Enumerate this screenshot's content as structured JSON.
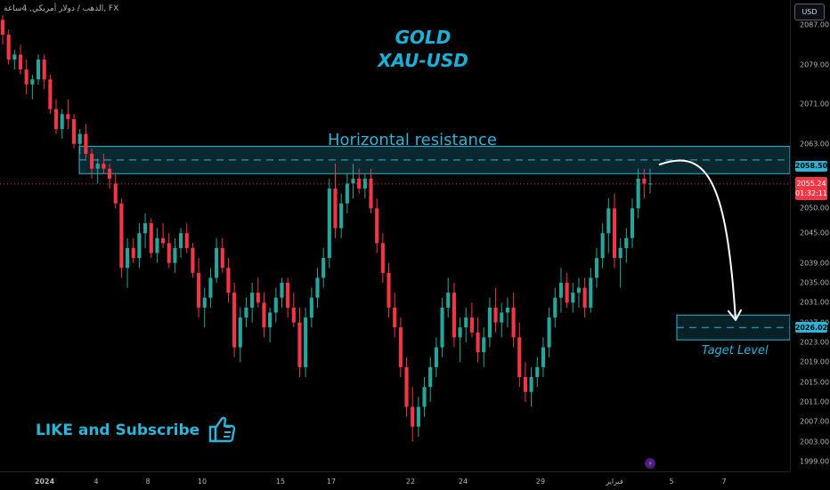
{
  "header": {
    "symbol_title": "الذهب / دولار أمريكي, 4ساعة, FX",
    "currency_button": "USD"
  },
  "annotations": {
    "title_line1": "GOLD",
    "title_line2": "XAU-USD",
    "resistance_label": "Horizontal resistance",
    "target_label": "Taget Level",
    "like_subscribe": "LIKE and Subscribe"
  },
  "price_axis": {
    "labels": [
      "2087.00",
      "2079.00",
      "2071.00",
      "2063.00",
      "2050.00",
      "2045.00",
      "2039.00",
      "2035.00",
      "2031.00",
      "2027.00",
      "2023.00",
      "2019.00",
      "2015.00",
      "2011.00",
      "2007.00",
      "2003.00",
      "1999.00"
    ],
    "resistance_price": "2058.50",
    "current_price": "2055.24",
    "countdown": "01:32:11",
    "target_price": "2026.02"
  },
  "time_axis": {
    "labels": [
      "2024",
      "4",
      "8",
      "10",
      "15",
      "17",
      "22",
      "24",
      "29",
      "فبراير",
      "5",
      "7"
    ]
  },
  "colors": {
    "up": "#26a69a",
    "down": "#f23645",
    "zone": "#29b6d8",
    "accent": "#1ab0d8"
  },
  "icons": {
    "thumbs_up": "thumbs-up-icon",
    "event": "lightning-icon"
  },
  "chart_data": {
    "type": "candlestick",
    "symbol": "XAU-USD",
    "timeframe": "4h",
    "ylim": [
      1997,
      2092
    ],
    "resistance_zone": [
      2057.0,
      2062.5
    ],
    "target_zone": [
      2023.5,
      2028.5
    ],
    "candles": [
      [
        2088,
        2089,
        2083,
        2085
      ],
      [
        2085,
        2086,
        2079,
        2080
      ],
      [
        2080,
        2082,
        2078,
        2081
      ],
      [
        2081,
        2083,
        2077,
        2078
      ],
      [
        2078,
        2080,
        2073,
        2075
      ],
      [
        2075,
        2077,
        2072,
        2076
      ],
      [
        2076,
        2081,
        2075,
        2080
      ],
      [
        2080,
        2081,
        2074,
        2076
      ],
      [
        2076,
        2077,
        2069,
        2070
      ],
      [
        2070,
        2072,
        2065,
        2066
      ],
      [
        2066,
        2070,
        2064,
        2069
      ],
      [
        2069,
        2072,
        2066,
        2068
      ],
      [
        2068,
        2069,
        2062,
        2063
      ],
      [
        2063,
        2066,
        2061,
        2065
      ],
      [
        2065,
        2067,
        2060,
        2061
      ],
      [
        2061,
        2062,
        2056,
        2058
      ],
      [
        2058,
        2060,
        2055,
        2059
      ],
      [
        2059,
        2061,
        2057,
        2058
      ],
      [
        2058,
        2059,
        2054,
        2056
      ],
      [
        2055,
        2057,
        2050,
        2051
      ],
      [
        2051,
        2052,
        2036,
        2038
      ],
      [
        2038,
        2044,
        2034,
        2042
      ],
      [
        2042,
        2044,
        2039,
        2040
      ],
      [
        2040,
        2047,
        2038,
        2045
      ],
      [
        2045,
        2049,
        2042,
        2047
      ],
      [
        2047,
        2048,
        2040,
        2041
      ],
      [
        2041,
        2046,
        2039,
        2044
      ],
      [
        2044,
        2047,
        2042,
        2043
      ],
      [
        2043,
        2045,
        2038,
        2039
      ],
      [
        2039,
        2044,
        2037,
        2042
      ],
      [
        2042,
        2046,
        2040,
        2045
      ],
      [
        2045,
        2047,
        2041,
        2042
      ],
      [
        2042,
        2043,
        2036,
        2037
      ],
      [
        2037,
        2040,
        2028,
        2030
      ],
      [
        2030,
        2034,
        2026,
        2032
      ],
      [
        2032,
        2038,
        2030,
        2036
      ],
      [
        2036,
        2044,
        2035,
        2042
      ],
      [
        2042,
        2044,
        2037,
        2038
      ],
      [
        2038,
        2040,
        2031,
        2033
      ],
      [
        2033,
        2035,
        2020,
        2022
      ],
      [
        2022,
        2030,
        2019,
        2028
      ],
      [
        2028,
        2032,
        2026,
        2030
      ],
      [
        2030,
        2035,
        2027,
        2033
      ],
      [
        2033,
        2036,
        2030,
        2031
      ],
      [
        2031,
        2033,
        2024,
        2026
      ],
      [
        2026,
        2030,
        2023,
        2029
      ],
      [
        2029,
        2034,
        2027,
        2032
      ],
      [
        2032,
        2036,
        2030,
        2035
      ],
      [
        2035,
        2036,
        2028,
        2030
      ],
      [
        2030,
        2033,
        2026,
        2027
      ],
      [
        2027,
        2030,
        2016,
        2018
      ],
      [
        2018,
        2030,
        2016,
        2028
      ],
      [
        2028,
        2034,
        2026,
        2032
      ],
      [
        2032,
        2038,
        2030,
        2036
      ],
      [
        2036,
        2042,
        2034,
        2040
      ],
      [
        2040,
        2056,
        2038,
        2054
      ],
      [
        2054,
        2059,
        2044,
        2046
      ],
      [
        2046,
        2053,
        2044,
        2051
      ],
      [
        2051,
        2057,
        2049,
        2055
      ],
      [
        2055,
        2059,
        2052,
        2056
      ],
      [
        2056,
        2058,
        2053,
        2054
      ],
      [
        2054,
        2057,
        2052,
        2056
      ],
      [
        2056,
        2058,
        2049,
        2050
      ],
      [
        2050,
        2052,
        2041,
        2043
      ],
      [
        2043,
        2045,
        2035,
        2037
      ],
      [
        2037,
        2039,
        2028,
        2030
      ],
      [
        2030,
        2033,
        2024,
        2026
      ],
      [
        2026,
        2028,
        2016,
        2018
      ],
      [
        2018,
        2020,
        2008,
        2010
      ],
      [
        2010,
        2014,
        2003,
        2006
      ],
      [
        2006,
        2012,
        2004,
        2010
      ],
      [
        2010,
        2016,
        2008,
        2014
      ],
      [
        2014,
        2020,
        2011,
        2018
      ],
      [
        2018,
        2024,
        2016,
        2022
      ],
      [
        2022,
        2032,
        2020,
        2030
      ],
      [
        2030,
        2036,
        2028,
        2033
      ],
      [
        2033,
        2035,
        2022,
        2024
      ],
      [
        2024,
        2028,
        2019,
        2026
      ],
      [
        2026,
        2030,
        2023,
        2028
      ],
      [
        2028,
        2031,
        2024,
        2025
      ],
      [
        2025,
        2028,
        2019,
        2021
      ],
      [
        2021,
        2026,
        2018,
        2024
      ],
      [
        2024,
        2032,
        2022,
        2030
      ],
      [
        2030,
        2034,
        2025,
        2027
      ],
      [
        2027,
        2031,
        2024,
        2029
      ],
      [
        2029,
        2032,
        2026,
        2030
      ],
      [
        2030,
        2033,
        2022,
        2024
      ],
      [
        2024,
        2027,
        2014,
        2016
      ],
      [
        2016,
        2019,
        2011,
        2013
      ],
      [
        2013,
        2018,
        2010,
        2016
      ],
      [
        2016,
        2020,
        2014,
        2018
      ],
      [
        2018,
        2024,
        2016,
        2022
      ],
      [
        2022,
        2030,
        2020,
        2028
      ],
      [
        2028,
        2034,
        2026,
        2032
      ],
      [
        2032,
        2038,
        2029,
        2035
      ],
      [
        2035,
        2037,
        2030,
        2031
      ],
      [
        2031,
        2035,
        2029,
        2033
      ],
      [
        2033,
        2036,
        2030,
        2034
      ],
      [
        2034,
        2036,
        2028,
        2030
      ],
      [
        2030,
        2038,
        2029,
        2036
      ],
      [
        2036,
        2042,
        2034,
        2040
      ],
      [
        2040,
        2047,
        2038,
        2045
      ],
      [
        2045,
        2052,
        2041,
        2050
      ],
      [
        2050,
        2053,
        2038,
        2040
      ],
      [
        2040,
        2044,
        2034,
        2042
      ],
      [
        2042,
        2046,
        2039,
        2044
      ],
      [
        2044,
        2052,
        2042,
        2050
      ],
      [
        2050,
        2058,
        2048,
        2056
      ],
      [
        2056,
        2058,
        2052,
        2055
      ],
      [
        2055,
        2058,
        2053,
        2055
      ]
    ]
  }
}
